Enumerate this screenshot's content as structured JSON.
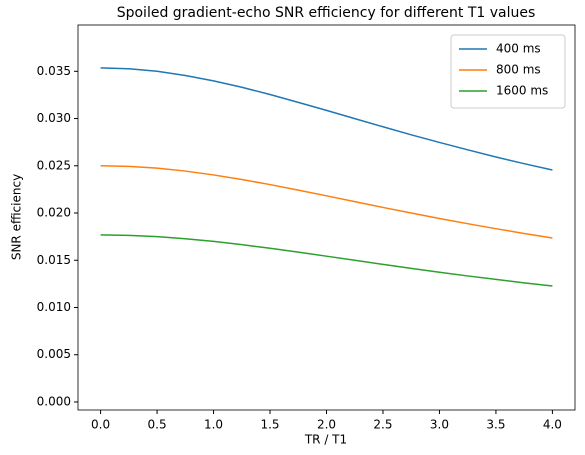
{
  "chart_data": {
    "type": "line",
    "title": "Spoiled gradient-echo SNR efficiency for different T1 values",
    "x_label": "TR / T1",
    "y_label": "SNR efficiency",
    "x": [
      0,
      0.25,
      0.5,
      0.75,
      1,
      1.25,
      1.5,
      1.75,
      2,
      2.25,
      2.5,
      2.75,
      3,
      3.25,
      3.5,
      3.75,
      4
    ],
    "series": [
      {
        "name": "400 ms",
        "color": "#1f77b4",
        "values": [
          0.03536,
          0.03527,
          0.035,
          0.03456,
          0.03399,
          0.03331,
          0.03254,
          0.03171,
          0.03086,
          0.02999,
          0.02913,
          0.02828,
          0.02747,
          0.02669,
          0.02593,
          0.02522,
          0.02455
        ]
      },
      {
        "name": "800 ms",
        "color": "#ff7f0e",
        "values": [
          0.025,
          0.02494,
          0.02475,
          0.02444,
          0.02403,
          0.02355,
          0.02301,
          0.02242,
          0.02182,
          0.02121,
          0.02059,
          0.02,
          0.01942,
          0.01887,
          0.01834,
          0.01783,
          0.01736
        ]
      },
      {
        "name": "1600 ms",
        "color": "#2ca02c",
        "values": [
          0.01768,
          0.01763,
          0.0175,
          0.01728,
          0.017,
          0.01665,
          0.01627,
          0.01586,
          0.01543,
          0.015,
          0.01456,
          0.01414,
          0.01373,
          0.01334,
          0.01297,
          0.01261,
          0.01227
        ]
      }
    ],
    "xlim": [
      -0.2,
      4.2
    ],
    "ylim": [
      -0.00085,
      0.0399
    ],
    "xticks": [
      {
        "value": 0,
        "label": "0.0"
      },
      0.5,
      {
        "value": 1,
        "label": "1.0"
      },
      1.5,
      {
        "value": 2,
        "label": "2.0"
      },
      2.5,
      {
        "value": 3,
        "label": "3.0"
      },
      3.5,
      {
        "value": 4,
        "label": "4.0"
      }
    ],
    "yticks": [
      {
        "value": 0,
        "label": "0.000"
      },
      {
        "value": 0.005,
        "label": "0.005"
      },
      {
        "value": 0.01,
        "label": "0.010"
      },
      {
        "value": 0.015,
        "label": "0.015"
      },
      {
        "value": 0.02,
        "label": "0.020"
      },
      {
        "value": 0.025,
        "label": "0.025"
      },
      {
        "value": 0.03,
        "label": "0.030"
      },
      {
        "value": 0.035,
        "label": "0.035"
      }
    ],
    "grid": false,
    "legend": "upper right"
  }
}
